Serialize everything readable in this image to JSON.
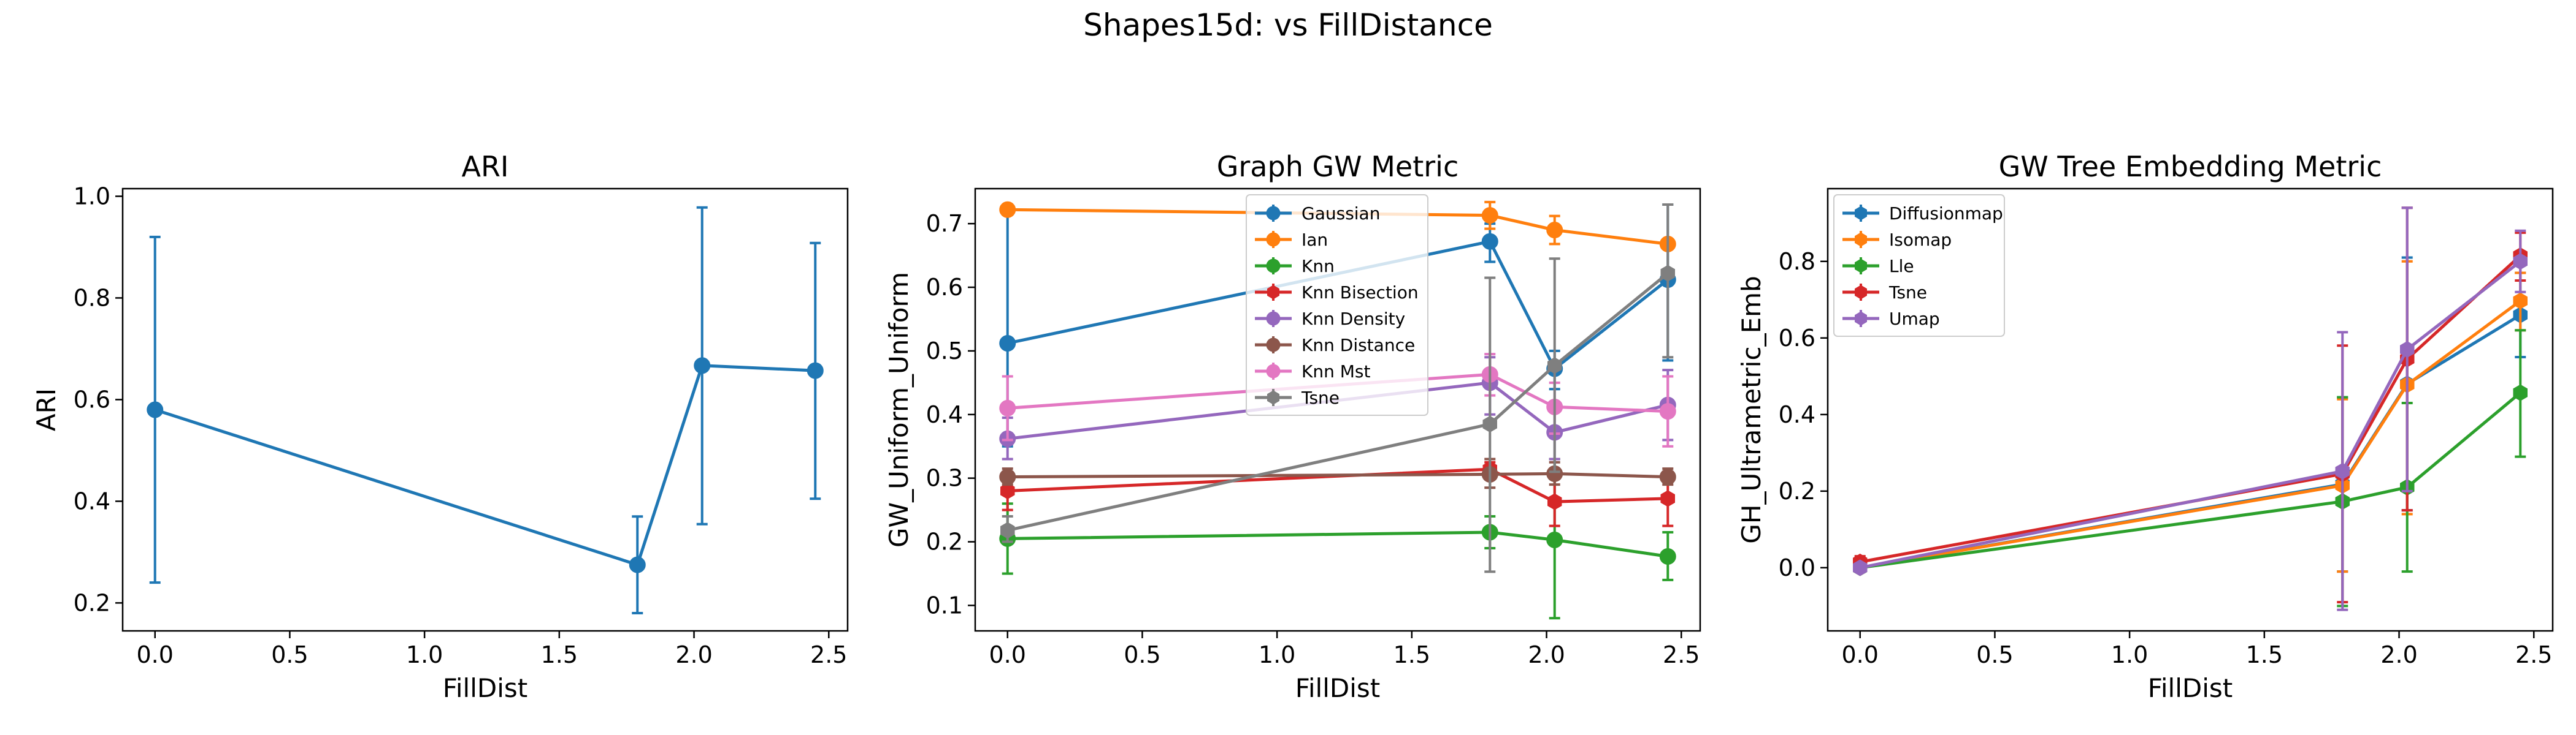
{
  "suptitle": "Shapes15d: vs FillDistance",
  "chart_data": [
    {
      "type": "line",
      "title": "ARI",
      "xlabel": "FillDist",
      "ylabel": "ARI",
      "xlim": [
        -0.12,
        2.57
      ],
      "ylim": [
        0.145,
        1.015
      ],
      "xticks": [
        0.0,
        0.5,
        1.0,
        1.5,
        2.0,
        2.5
      ],
      "xtick_labels": [
        "0.0",
        "0.5",
        "1.0",
        "1.5",
        "2.0",
        "2.5"
      ],
      "yticks": [
        0.2,
        0.4,
        0.6,
        0.8,
        1.0
      ],
      "ytick_labels": [
        "0.2",
        "0.4",
        "0.6",
        "0.8",
        "1.0"
      ],
      "legend": null,
      "x": [
        0.0,
        1.79,
        2.03,
        2.45
      ],
      "series": [
        {
          "name": "",
          "color": "#1f77b4",
          "marker": "circle",
          "values": [
            0.58,
            0.275,
            0.667,
            0.657
          ],
          "lower": [
            0.24,
            0.18,
            0.355,
            0.405
          ],
          "upper": [
            0.92,
            0.37,
            0.978,
            0.908
          ]
        }
      ]
    },
    {
      "type": "line",
      "title": "Graph GW Metric",
      "xlabel": "FillDist",
      "ylabel": "GW_Uniform_Uniform",
      "xlim": [
        -0.12,
        2.57
      ],
      "ylim": [
        0.06,
        0.755
      ],
      "xticks": [
        0.0,
        0.5,
        1.0,
        1.5,
        2.0,
        2.5
      ],
      "xtick_labels": [
        "0.0",
        "0.5",
        "1.0",
        "1.5",
        "2.0",
        "2.5"
      ],
      "yticks": [
        0.1,
        0.2,
        0.3,
        0.4,
        0.5,
        0.6,
        0.7
      ],
      "ytick_labels": [
        "0.1",
        "0.2",
        "0.3",
        "0.4",
        "0.5",
        "0.6",
        "0.7"
      ],
      "legend": "upper-center",
      "x": [
        0.0,
        1.79,
        2.03,
        2.45
      ],
      "series": [
        {
          "name": "Gaussian",
          "color": "#1f77b4",
          "marker": "circle",
          "values": [
            0.512,
            0.672,
            0.472,
            0.612
          ],
          "lower": [
            0.35,
            0.64,
            0.44,
            0.485
          ],
          "upper": [
            0.72,
            0.7,
            0.5,
            0.73
          ]
        },
        {
          "name": "Ian",
          "color": "#ff7f0e",
          "marker": "circle",
          "values": [
            0.722,
            0.713,
            0.69,
            0.668
          ],
          "lower": [
            0.72,
            0.692,
            0.668,
            0.668
          ],
          "upper": [
            0.724,
            0.734,
            0.712,
            0.668
          ]
        },
        {
          "name": "Knn",
          "color": "#2ca02c",
          "marker": "circle",
          "values": [
            0.205,
            0.215,
            0.203,
            0.177
          ],
          "lower": [
            0.15,
            0.19,
            0.08,
            0.14
          ],
          "upper": [
            0.26,
            0.24,
            0.33,
            0.215
          ]
        },
        {
          "name": "Knn Bisection",
          "color": "#d62728",
          "marker": "hexagon",
          "values": [
            0.28,
            0.314,
            0.263,
            0.268
          ],
          "lower": [
            0.25,
            0.3,
            0.225,
            0.225
          ],
          "upper": [
            0.31,
            0.325,
            0.3,
            0.31
          ]
        },
        {
          "name": "Knn Density",
          "color": "#9467bd",
          "marker": "circle",
          "values": [
            0.362,
            0.45,
            0.372,
            0.415
          ],
          "lower": [
            0.33,
            0.4,
            0.33,
            0.36
          ],
          "upper": [
            0.395,
            0.49,
            0.41,
            0.47
          ]
        },
        {
          "name": "Knn Distance",
          "color": "#8c564b",
          "marker": "circle",
          "values": [
            0.302,
            0.306,
            0.307,
            0.302
          ],
          "lower": [
            0.29,
            0.285,
            0.29,
            0.29
          ],
          "upper": [
            0.315,
            0.33,
            0.325,
            0.315
          ]
        },
        {
          "name": "Knn Mst",
          "color": "#e377c2",
          "marker": "circle",
          "values": [
            0.41,
            0.463,
            0.412,
            0.405
          ],
          "lower": [
            0.36,
            0.43,
            0.37,
            0.35
          ],
          "upper": [
            0.46,
            0.495,
            0.45,
            0.46
          ]
        },
        {
          "name": "Tsne",
          "color": "#7f7f7f",
          "marker": "hexagon",
          "values": [
            0.218,
            0.385,
            0.477,
            0.622
          ],
          "lower": [
            0.2,
            0.153,
            0.31,
            0.49
          ],
          "upper": [
            0.24,
            0.615,
            0.645,
            0.73
          ]
        }
      ]
    },
    {
      "type": "line",
      "title": "GW Tree Embedding Metric",
      "xlabel": "FillDist",
      "ylabel": "GH_Ultrametric_Emb",
      "xlim": [
        -0.12,
        2.57
      ],
      "ylim": [
        -0.165,
        0.99
      ],
      "xticks": [
        0.0,
        0.5,
        1.0,
        1.5,
        2.0,
        2.5
      ],
      "xtick_labels": [
        "0.0",
        "0.5",
        "1.0",
        "1.5",
        "2.0",
        "2.5"
      ],
      "yticks": [
        0.0,
        0.2,
        0.4,
        0.6,
        0.8
      ],
      "ytick_labels": [
        "0.0",
        "0.2",
        "0.4",
        "0.6",
        "0.8"
      ],
      "legend": "upper-left",
      "x": [
        0.0,
        1.79,
        2.03,
        2.45
      ],
      "series": [
        {
          "name": "Diffusionmap",
          "color": "#1f77b4",
          "marker": "hexagon",
          "values": [
            0.0,
            0.218,
            0.48,
            0.66
          ],
          "lower": [
            0.0,
            -0.01,
            0.15,
            0.55
          ],
          "upper": [
            0.0,
            0.445,
            0.81,
            0.77
          ]
        },
        {
          "name": "Isomap",
          "color": "#ff7f0e",
          "marker": "hexagon",
          "values": [
            0.0,
            0.215,
            0.478,
            0.697
          ],
          "lower": [
            0.0,
            -0.01,
            0.14,
            0.62
          ],
          "upper": [
            0.0,
            0.44,
            0.8,
            0.77
          ]
        },
        {
          "name": "Lle",
          "color": "#2ca02c",
          "marker": "hexagon",
          "values": [
            0.0,
            0.173,
            0.21,
            0.457
          ],
          "lower": [
            0.0,
            -0.1,
            -0.01,
            0.29
          ],
          "upper": [
            0.0,
            0.445,
            0.43,
            0.62
          ]
        },
        {
          "name": "Tsne",
          "color": "#d62728",
          "marker": "hexagon",
          "values": [
            0.015,
            0.245,
            0.545,
            0.815
          ],
          "lower": [
            0.0,
            -0.09,
            0.15,
            0.75
          ],
          "upper": [
            0.03,
            0.58,
            0.94,
            0.875
          ]
        },
        {
          "name": "Umap",
          "color": "#9467bd",
          "marker": "hexagon",
          "values": [
            0.0,
            0.252,
            0.57,
            0.8
          ],
          "lower": [
            0.0,
            -0.11,
            0.2,
            0.72
          ],
          "upper": [
            0.0,
            0.615,
            0.94,
            0.88
          ]
        }
      ]
    }
  ]
}
